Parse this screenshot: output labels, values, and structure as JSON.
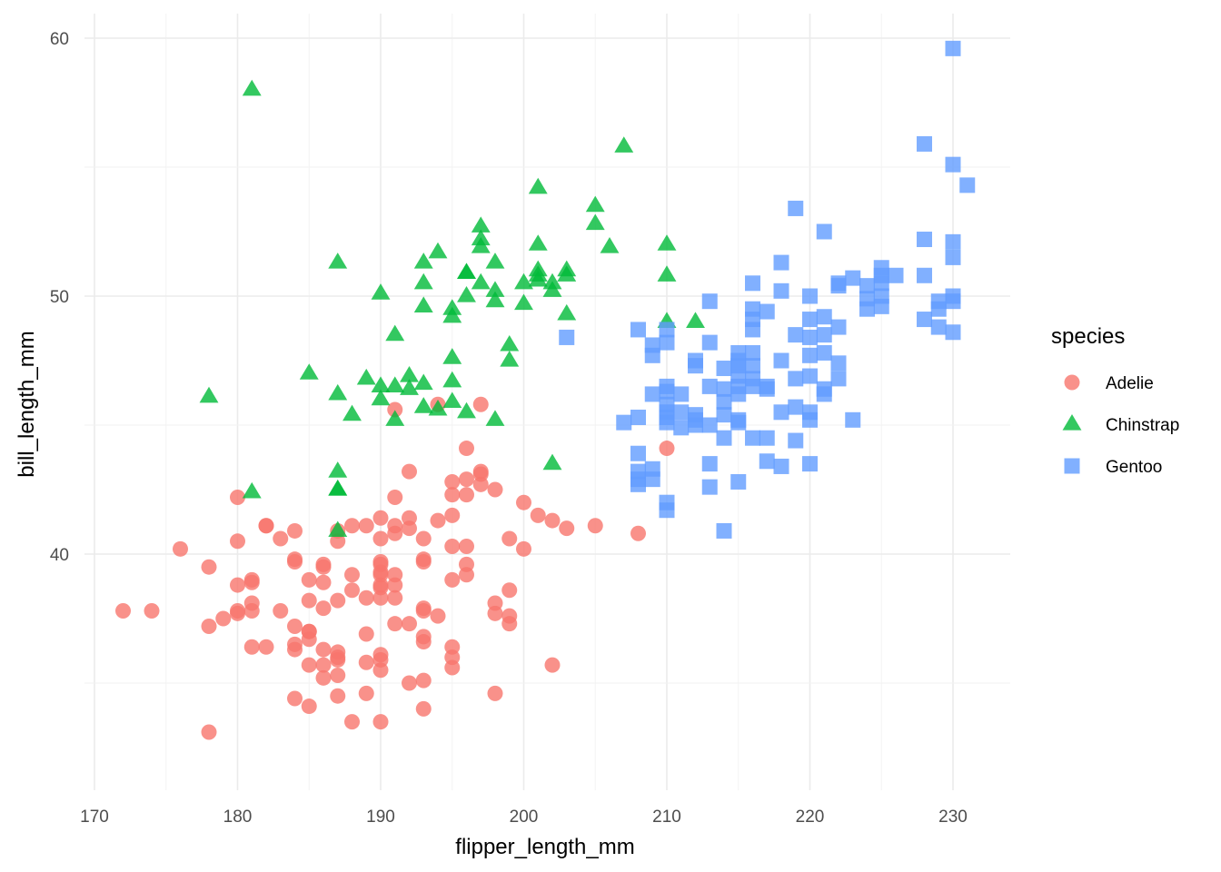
{
  "chart_data": {
    "type": "scatter",
    "title": "",
    "xlabel": "flipper_length_mm",
    "ylabel": "bill_length_mm",
    "xlim": [
      169.5,
      234
    ],
    "ylim": [
      31,
      61
    ],
    "x_ticks": [
      170,
      180,
      190,
      200,
      210,
      220,
      230
    ],
    "y_ticks": [
      40,
      50,
      60
    ],
    "grid": true,
    "legend": {
      "title": "species",
      "position": "right"
    },
    "series": [
      {
        "name": "Adelie",
        "color": "#F8766D",
        "shape": "circle",
        "points": [
          [
            172,
            37.8
          ],
          [
            174,
            37.8
          ],
          [
            176,
            40.2
          ],
          [
            178,
            39.5
          ],
          [
            178,
            37.2
          ],
          [
            178,
            33.1
          ],
          [
            179,
            37.5
          ],
          [
            180,
            42.2
          ],
          [
            180,
            40.5
          ],
          [
            180,
            38.8
          ],
          [
            180,
            37.8
          ],
          [
            180,
            37.7
          ],
          [
            181,
            39.0
          ],
          [
            181,
            38.9
          ],
          [
            181,
            38.1
          ],
          [
            181,
            37.8
          ],
          [
            181,
            36.4
          ],
          [
            182,
            41.1
          ],
          [
            182,
            41.1
          ],
          [
            182,
            36.4
          ],
          [
            183,
            40.6
          ],
          [
            183,
            37.8
          ],
          [
            184,
            40.9
          ],
          [
            184,
            39.8
          ],
          [
            184,
            39.7
          ],
          [
            184,
            37.2
          ],
          [
            184,
            36.5
          ],
          [
            184,
            36.3
          ],
          [
            184,
            34.4
          ],
          [
            185,
            39.0
          ],
          [
            185,
            38.2
          ],
          [
            185,
            37.0
          ],
          [
            185,
            37.0
          ],
          [
            185,
            36.7
          ],
          [
            185,
            35.7
          ],
          [
            185,
            34.1
          ],
          [
            186,
            39.6
          ],
          [
            186,
            39.5
          ],
          [
            186,
            38.9
          ],
          [
            186,
            37.9
          ],
          [
            186,
            36.3
          ],
          [
            186,
            35.7
          ],
          [
            186,
            35.2
          ],
          [
            187,
            40.9
          ],
          [
            187,
            40.5
          ],
          [
            187,
            38.2
          ],
          [
            187,
            36.2
          ],
          [
            187,
            36.0
          ],
          [
            187,
            35.9
          ],
          [
            187,
            35.3
          ],
          [
            187,
            34.5
          ],
          [
            188,
            41.1
          ],
          [
            188,
            39.2
          ],
          [
            188,
            38.6
          ],
          [
            188,
            33.5
          ],
          [
            189,
            41.1
          ],
          [
            189,
            38.3
          ],
          [
            189,
            36.9
          ],
          [
            189,
            35.8
          ],
          [
            189,
            34.6
          ],
          [
            190,
            41.4
          ],
          [
            190,
            40.6
          ],
          [
            190,
            39.7
          ],
          [
            190,
            39.6
          ],
          [
            190,
            39.3
          ],
          [
            190,
            39.2
          ],
          [
            190,
            38.8
          ],
          [
            190,
            38.7
          ],
          [
            190,
            38.3
          ],
          [
            190,
            36.1
          ],
          [
            190,
            35.9
          ],
          [
            190,
            35.5
          ],
          [
            190,
            33.5
          ],
          [
            191,
            42.2
          ],
          [
            191,
            41.1
          ],
          [
            191,
            40.8
          ],
          [
            191,
            39.2
          ],
          [
            191,
            38.8
          ],
          [
            191,
            38.3
          ],
          [
            191,
            37.3
          ],
          [
            192,
            43.2
          ],
          [
            192,
            41.4
          ],
          [
            192,
            41.0
          ],
          [
            192,
            37.3
          ],
          [
            192,
            35.0
          ],
          [
            193,
            40.6
          ],
          [
            193,
            39.8
          ],
          [
            193,
            39.7
          ],
          [
            193,
            37.9
          ],
          [
            193,
            37.8
          ],
          [
            193,
            36.8
          ],
          [
            193,
            36.6
          ],
          [
            193,
            35.1
          ],
          [
            193,
            34.0
          ],
          [
            194,
            41.3
          ],
          [
            194,
            37.6
          ],
          [
            194,
            45.8
          ],
          [
            195,
            42.8
          ],
          [
            195,
            42.3
          ],
          [
            195,
            41.5
          ],
          [
            195,
            40.3
          ],
          [
            195,
            39.0
          ],
          [
            195,
            36.4
          ],
          [
            195,
            36.0
          ],
          [
            195,
            35.6
          ],
          [
            196,
            42.9
          ],
          [
            196,
            42.3
          ],
          [
            196,
            40.3
          ],
          [
            196,
            39.6
          ],
          [
            196,
            39.2
          ],
          [
            197,
            43.2
          ],
          [
            197,
            43.1
          ],
          [
            197,
            42.7
          ],
          [
            197,
            45.8
          ],
          [
            198,
            42.5
          ],
          [
            198,
            38.1
          ],
          [
            198,
            37.7
          ],
          [
            198,
            34.6
          ],
          [
            199,
            40.6
          ],
          [
            199,
            38.6
          ],
          [
            199,
            37.6
          ],
          [
            199,
            37.3
          ],
          [
            200,
            42.0
          ],
          [
            200,
            40.2
          ],
          [
            201,
            41.5
          ],
          [
            202,
            41.3
          ],
          [
            202,
            35.7
          ],
          [
            203,
            41.0
          ],
          [
            205,
            41.1
          ],
          [
            208,
            40.8
          ],
          [
            210,
            44.1
          ],
          [
            196,
            44.1
          ],
          [
            191,
            45.6
          ]
        ]
      },
      {
        "name": "Chinstrap",
        "color": "#00BA38",
        "shape": "triangle",
        "points": [
          [
            178,
            46.1
          ],
          [
            181,
            58.0
          ],
          [
            181,
            42.4
          ],
          [
            185,
            47.0
          ],
          [
            187,
            51.3
          ],
          [
            187,
            46.2
          ],
          [
            187,
            43.2
          ],
          [
            187,
            42.5
          ],
          [
            187,
            42.5
          ],
          [
            187,
            40.9
          ],
          [
            188,
            45.4
          ],
          [
            189,
            46.8
          ],
          [
            190,
            50.1
          ],
          [
            190,
            46.5
          ],
          [
            190,
            46.0
          ],
          [
            191,
            48.5
          ],
          [
            191,
            46.5
          ],
          [
            191,
            45.2
          ],
          [
            192,
            46.9
          ],
          [
            192,
            46.4
          ],
          [
            193,
            51.3
          ],
          [
            193,
            50.5
          ],
          [
            193,
            49.6
          ],
          [
            193,
            46.6
          ],
          [
            193,
            45.7
          ],
          [
            194,
            51.7
          ],
          [
            194,
            45.6
          ],
          [
            195,
            49.5
          ],
          [
            195,
            49.2
          ],
          [
            195,
            47.6
          ],
          [
            195,
            46.7
          ],
          [
            195,
            45.9
          ],
          [
            196,
            50.9
          ],
          [
            196,
            50.9
          ],
          [
            196,
            50.0
          ],
          [
            196,
            45.5
          ],
          [
            197,
            52.7
          ],
          [
            197,
            52.2
          ],
          [
            197,
            51.9
          ],
          [
            197,
            50.5
          ],
          [
            198,
            51.3
          ],
          [
            198,
            50.2
          ],
          [
            198,
            49.8
          ],
          [
            198,
            45.2
          ],
          [
            199,
            48.1
          ],
          [
            199,
            47.5
          ],
          [
            200,
            50.5
          ],
          [
            200,
            49.7
          ],
          [
            201,
            54.2
          ],
          [
            201,
            52.0
          ],
          [
            201,
            51.0
          ],
          [
            201,
            50.8
          ],
          [
            201,
            50.6
          ],
          [
            202,
            50.5
          ],
          [
            202,
            50.2
          ],
          [
            202,
            43.5
          ],
          [
            203,
            51.0
          ],
          [
            203,
            50.8
          ],
          [
            203,
            49.3
          ],
          [
            205,
            53.5
          ],
          [
            205,
            52.8
          ],
          [
            206,
            51.9
          ],
          [
            207,
            55.8
          ],
          [
            210,
            52.0
          ],
          [
            210,
            50.8
          ],
          [
            210,
            49.0
          ],
          [
            212,
            49.0
          ]
        ]
      },
      {
        "name": "Gentoo",
        "color": "#619CFF",
        "shape": "square",
        "points": [
          [
            203,
            48.4
          ],
          [
            207,
            45.1
          ],
          [
            208,
            48.7
          ],
          [
            208,
            45.3
          ],
          [
            208,
            43.9
          ],
          [
            208,
            43.2
          ],
          [
            208,
            42.9
          ],
          [
            208,
            42.7
          ],
          [
            209,
            48.1
          ],
          [
            209,
            47.7
          ],
          [
            209,
            46.2
          ],
          [
            209,
            43.3
          ],
          [
            209,
            42.9
          ],
          [
            210,
            48.7
          ],
          [
            210,
            48.2
          ],
          [
            210,
            46.5
          ],
          [
            210,
            46.3
          ],
          [
            210,
            45.8
          ],
          [
            210,
            45.5
          ],
          [
            210,
            45.3
          ],
          [
            210,
            45.1
          ],
          [
            210,
            42.0
          ],
          [
            210,
            41.7
          ],
          [
            211,
            46.2
          ],
          [
            211,
            45.5
          ],
          [
            211,
            44.9
          ],
          [
            212,
            47.5
          ],
          [
            212,
            47.3
          ],
          [
            212,
            45.4
          ],
          [
            212,
            45.2
          ],
          [
            212,
            45.0
          ],
          [
            213,
            49.8
          ],
          [
            213,
            48.2
          ],
          [
            213,
            46.5
          ],
          [
            213,
            45.0
          ],
          [
            213,
            43.5
          ],
          [
            213,
            42.6
          ],
          [
            214,
            47.2
          ],
          [
            214,
            46.4
          ],
          [
            214,
            45.9
          ],
          [
            214,
            45.4
          ],
          [
            214,
            44.5
          ],
          [
            214,
            40.9
          ],
          [
            215,
            47.8
          ],
          [
            215,
            47.5
          ],
          [
            215,
            47.3
          ],
          [
            215,
            46.9
          ],
          [
            215,
            46.5
          ],
          [
            215,
            46.2
          ],
          [
            215,
            45.2
          ],
          [
            215,
            45.1
          ],
          [
            215,
            42.8
          ],
          [
            216,
            50.5
          ],
          [
            216,
            49.5
          ],
          [
            216,
            49.1
          ],
          [
            216,
            48.7
          ],
          [
            216,
            47.8
          ],
          [
            216,
            47.3
          ],
          [
            216,
            46.8
          ],
          [
            216,
            46.5
          ],
          [
            216,
            44.5
          ],
          [
            217,
            49.4
          ],
          [
            217,
            46.5
          ],
          [
            217,
            46.4
          ],
          [
            217,
            44.5
          ],
          [
            217,
            43.6
          ],
          [
            218,
            51.3
          ],
          [
            218,
            50.2
          ],
          [
            218,
            47.5
          ],
          [
            218,
            45.5
          ],
          [
            218,
            43.4
          ],
          [
            219,
            53.4
          ],
          [
            219,
            48.5
          ],
          [
            219,
            46.8
          ],
          [
            219,
            45.7
          ],
          [
            219,
            44.4
          ],
          [
            220,
            50.0
          ],
          [
            220,
            49.1
          ],
          [
            220,
            48.4
          ],
          [
            220,
            47.7
          ],
          [
            220,
            46.9
          ],
          [
            220,
            45.5
          ],
          [
            220,
            45.2
          ],
          [
            220,
            43.5
          ],
          [
            221,
            52.5
          ],
          [
            221,
            49.2
          ],
          [
            221,
            48.5
          ],
          [
            221,
            47.8
          ],
          [
            221,
            46.4
          ],
          [
            221,
            46.2
          ],
          [
            222,
            50.5
          ],
          [
            222,
            50.4
          ],
          [
            222,
            48.8
          ],
          [
            222,
            47.4
          ],
          [
            222,
            46.8
          ],
          [
            223,
            50.7
          ],
          [
            223,
            45.2
          ],
          [
            224,
            50.4
          ],
          [
            224,
            49.9
          ],
          [
            224,
            49.5
          ],
          [
            225,
            51.1
          ],
          [
            225,
            50.8
          ],
          [
            225,
            50.5
          ],
          [
            225,
            50.0
          ],
          [
            225,
            49.6
          ],
          [
            226,
            50.8
          ],
          [
            228,
            55.9
          ],
          [
            228,
            52.2
          ],
          [
            228,
            50.8
          ],
          [
            228,
            49.1
          ],
          [
            229,
            49.8
          ],
          [
            229,
            49.5
          ],
          [
            229,
            48.8
          ],
          [
            230,
            59.6
          ],
          [
            230,
            55.1
          ],
          [
            230,
            52.1
          ],
          [
            230,
            51.5
          ],
          [
            230,
            50.0
          ],
          [
            230,
            49.8
          ],
          [
            230,
            48.6
          ],
          [
            231,
            54.3
          ]
        ]
      }
    ]
  }
}
